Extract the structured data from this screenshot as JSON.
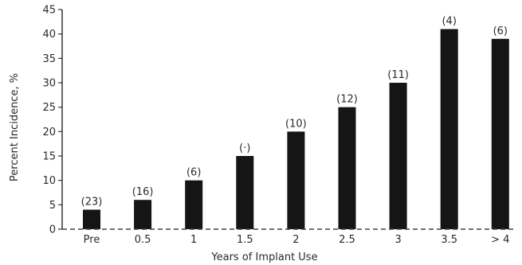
{
  "chart_data": {
    "type": "bar",
    "categories": [
      "Pre",
      "0.5",
      "1",
      "1.5",
      "2",
      "2.5",
      "3",
      "3.5",
      "> 4"
    ],
    "values": [
      4,
      6,
      10,
      15,
      20,
      25,
      30,
      41,
      39
    ],
    "n_labels": [
      "(23)",
      "(16)",
      "(6)",
      "(·)",
      "(10)",
      "(12)",
      "(11)",
      "(4)",
      "(6)"
    ],
    "xlabel": "Years of Implant Use",
    "ylabel": "Percent Incidence, %",
    "ylim": [
      0,
      45
    ],
    "yticks": [
      0,
      5,
      10,
      15,
      20,
      25,
      30,
      35,
      40,
      45
    ],
    "ytick_labels": [
      "0",
      "5",
      "10",
      "15",
      "20",
      "25",
      "30",
      "35",
      "40",
      "45"
    ],
    "grid": false,
    "colors": {
      "bar": "#151515",
      "axis": "#333333"
    }
  }
}
